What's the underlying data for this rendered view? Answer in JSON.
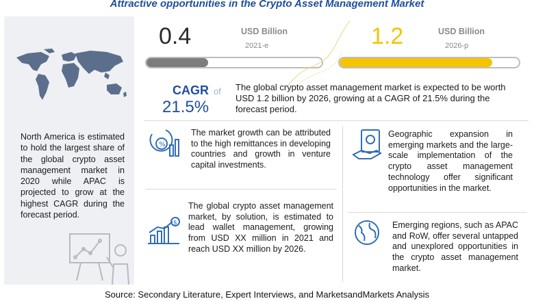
{
  "header": {
    "title": "Attractive opportunities in the Crypto Asset Management Market"
  },
  "stats": {
    "start": {
      "value": "0.4",
      "unit": "USD Billion",
      "year": "2021-e",
      "fill_fraction": 0.35,
      "color": "#7d7d7d"
    },
    "end": {
      "value": "1.2",
      "unit": "USD Billion",
      "year": "2026-p",
      "fill_fraction": 0.85,
      "color": "#f5c400"
    }
  },
  "cagr": {
    "label": "CAGR",
    "of": "of",
    "value": "21.5%",
    "text": "The global crypto asset management market is expected to be worth USD 1.2 billion by 2026, growing at a CAGR of 21.5% during the forecast period."
  },
  "left_panel": {
    "text": "North America is estimated to hold the largest share of the global crypto asset management market in 2020 while APAC is projected to grow at the highest CAGR during the forecast period."
  },
  "facts": {
    "growth": {
      "icon": "money-chart-icon",
      "text": "The market growth can be attributed to the high remittances in developing countries and growth in venture capital investments."
    },
    "solution": {
      "icon": "growth-chart-icon",
      "text": "The global crypto asset management market, by solution, is estimated to lead wallet management, growing from USD XX million in 2021 and reach USD XX million by 2026."
    },
    "geographic": {
      "icon": "cash-hand-icon",
      "text": "Geographic expansion in emerging markets and the large-scale implementation of the crypto asset management technology offer significant opportunities in the market."
    },
    "emerging": {
      "icon": "globe-icon",
      "text": "Emerging regions, such as APAC and RoW, offer several untapped and unexplored opportunities in the crypto asset management market."
    }
  },
  "colors": {
    "accent_blue": "#1f4e9c",
    "gold": "#f5c400",
    "gray": "#7d7d7d"
  },
  "footer": {
    "source": "Source: Secondary Literature, Expert Interviews, and MarketsandMarkets Analysis"
  }
}
